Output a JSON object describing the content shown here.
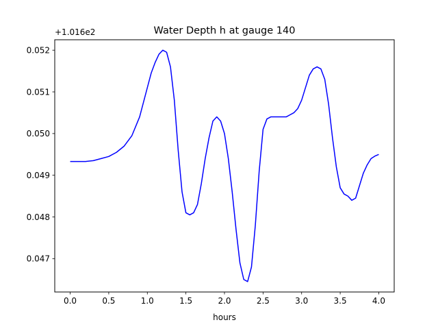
{
  "chart_data": {
    "type": "line",
    "title": "Water Depth h at gauge 140",
    "xlabel": "hours",
    "ylabel": "",
    "offset_label": "+1.016e2",
    "y_offset": 101.6,
    "xlim": [
      -0.2,
      4.2
    ],
    "ylim": [
      0.0462,
      0.05225
    ],
    "xticks": [
      0.0,
      0.5,
      1.0,
      1.5,
      2.0,
      2.5,
      3.0,
      3.5,
      4.0
    ],
    "xtick_labels": [
      "0.0",
      "0.5",
      "1.0",
      "1.5",
      "2.0",
      "2.5",
      "3.0",
      "3.5",
      "4.0"
    ],
    "yticks": [
      0.047,
      0.048,
      0.049,
      0.05,
      0.051,
      0.052
    ],
    "ytick_labels": [
      "0.047",
      "0.048",
      "0.049",
      "0.050",
      "0.051",
      "0.052"
    ],
    "grid": false,
    "series": [
      {
        "color": "#0000ff",
        "x": [
          0.0,
          0.1,
          0.2,
          0.3,
          0.4,
          0.5,
          0.6,
          0.7,
          0.8,
          0.9,
          1.0,
          1.05,
          1.1,
          1.15,
          1.2,
          1.25,
          1.3,
          1.35,
          1.4,
          1.45,
          1.5,
          1.55,
          1.6,
          1.65,
          1.7,
          1.75,
          1.8,
          1.85,
          1.9,
          1.95,
          2.0,
          2.05,
          2.1,
          2.15,
          2.2,
          2.25,
          2.3,
          2.35,
          2.4,
          2.45,
          2.5,
          2.55,
          2.6,
          2.65,
          2.7,
          2.75,
          2.8,
          2.85,
          2.9,
          2.95,
          3.0,
          3.05,
          3.1,
          3.15,
          3.2,
          3.25,
          3.3,
          3.35,
          3.4,
          3.45,
          3.5,
          3.55,
          3.6,
          3.65,
          3.7,
          3.75,
          3.8,
          3.85,
          3.9,
          3.95,
          4.0
        ],
        "values": [
          0.04933,
          0.04933,
          0.04933,
          0.04935,
          0.0494,
          0.04945,
          0.04955,
          0.0497,
          0.04995,
          0.0504,
          0.0511,
          0.05145,
          0.0517,
          0.0519,
          0.052,
          0.05195,
          0.0516,
          0.0508,
          0.0496,
          0.0486,
          0.0481,
          0.04805,
          0.0481,
          0.0483,
          0.0488,
          0.0494,
          0.0499,
          0.0503,
          0.0504,
          0.0503,
          0.05,
          0.0494,
          0.0486,
          0.0477,
          0.0469,
          0.0465,
          0.04645,
          0.0468,
          0.0478,
          0.0491,
          0.0501,
          0.05035,
          0.0504,
          0.0504,
          0.0504,
          0.0504,
          0.0504,
          0.05045,
          0.0505,
          0.0506,
          0.0508,
          0.0511,
          0.0514,
          0.05155,
          0.0516,
          0.05155,
          0.0513,
          0.0507,
          0.0499,
          0.0492,
          0.0487,
          0.04855,
          0.0485,
          0.0484,
          0.04845,
          0.04875,
          0.04905,
          0.04925,
          0.0494,
          0.04946,
          0.0495
        ]
      }
    ]
  }
}
